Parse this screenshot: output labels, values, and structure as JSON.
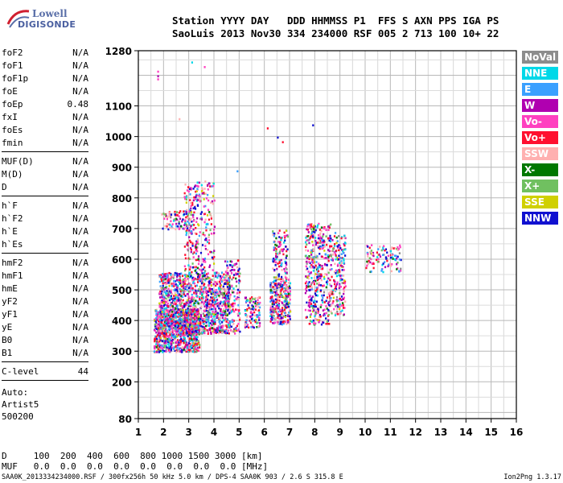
{
  "logo": {
    "line1": "Lowell",
    "line2": "DIGISONDE"
  },
  "header": {
    "line1": "Station YYYY DAY   DDD HHMMSS P1  FFS S AXN PPS IGA PS",
    "line2": "SaoLuis 2013 Nov30 334 234000 RSF 005 2 713 100 10+ 22"
  },
  "params_group1": [
    {
      "name": "foF2",
      "value": "N/A"
    },
    {
      "name": "foF1",
      "value": "N/A"
    },
    {
      "name": "foF1p",
      "value": "N/A"
    },
    {
      "name": "foE",
      "value": "N/A"
    },
    {
      "name": "foEp",
      "value": "0.48"
    },
    {
      "name": "fxI",
      "value": "N/A"
    },
    {
      "name": "foEs",
      "value": "N/A"
    },
    {
      "name": "fmin",
      "value": "N/A"
    }
  ],
  "params_group2": [
    {
      "name": "MUF(D)",
      "value": "N/A"
    },
    {
      "name": "M(D)",
      "value": "N/A"
    },
    {
      "name": "D",
      "value": "N/A"
    }
  ],
  "params_group3": [
    {
      "name": "h`F",
      "value": "N/A"
    },
    {
      "name": "h`F2",
      "value": "N/A"
    },
    {
      "name": "h`E",
      "value": "N/A"
    },
    {
      "name": "h`Es",
      "value": "N/A"
    }
  ],
  "params_group4": [
    {
      "name": "hmF2",
      "value": "N/A"
    },
    {
      "name": "hmF1",
      "value": "N/A"
    },
    {
      "name": "hmE",
      "value": "N/A"
    },
    {
      "name": "yF2",
      "value": "N/A"
    },
    {
      "name": "yF1",
      "value": "N/A"
    },
    {
      "name": "yE",
      "value": "N/A"
    },
    {
      "name": "B0",
      "value": "N/A"
    },
    {
      "name": "B1",
      "value": "N/A"
    }
  ],
  "params_group5": [
    {
      "name": "C-level",
      "value": "44"
    }
  ],
  "auto": {
    "line1": "Auto:",
    "line2": "Artist5",
    "line3": "500200"
  },
  "legend": [
    {
      "label": "NoVal",
      "color": "#8c8c8c"
    },
    {
      "label": "NNE",
      "color": "#00d8e8"
    },
    {
      "label": "E",
      "color": "#3aa0ff"
    },
    {
      "label": "W",
      "color": "#b000b0"
    },
    {
      "label": "Vo-",
      "color": "#ff40c0"
    },
    {
      "label": "Vo+",
      "color": "#ff1030"
    },
    {
      "label": "SSW",
      "color": "#ffb0b0"
    },
    {
      "label": "X-",
      "color": "#007800"
    },
    {
      "label": "X+",
      "color": "#70c060"
    },
    {
      "label": "SSE",
      "color": "#d0d000"
    },
    {
      "label": "NNW",
      "color": "#1010d0"
    }
  ],
  "bottom": {
    "line1": "D     100  200  400  600  800 1000 1500 3000 [km]",
    "line2": "MUF   0.0  0.0  0.0  0.0  0.0  0.0  0.0  0.0 [MHz]"
  },
  "footer": {
    "left": "SAA0K_2013334234000.RSF / 300fx256h 50 kHz 5.0 km / DPS-4 SAA0K 903 / 2.6 S 315.8 E",
    "right": "Ion2Png 1.3.17"
  },
  "chart_data": {
    "type": "scatter",
    "title": "",
    "xlabel": "",
    "ylabel": "",
    "xlim": [
      1,
      16
    ],
    "ylim": [
      80,
      1280
    ],
    "x_ticks": [
      1,
      2,
      3,
      4,
      5,
      6,
      7,
      8,
      9,
      10,
      11,
      12,
      13,
      14,
      15,
      16
    ],
    "y_ticks": [
      80,
      200,
      300,
      400,
      500,
      600,
      700,
      800,
      900,
      1000,
      1100,
      1280
    ],
    "grid": true,
    "clusters": [
      {
        "x_range": [
          1.6,
          3.4
        ],
        "y_range": [
          300,
          440
        ],
        "density": 900
      },
      {
        "x_range": [
          1.8,
          4.6
        ],
        "y_range": [
          360,
          560
        ],
        "density": 1300
      },
      {
        "x_range": [
          2.8,
          4.0
        ],
        "y_range": [
          560,
          860
        ],
        "density": 260
      },
      {
        "x_range": [
          1.9,
          3.2
        ],
        "y_range": [
          700,
          760
        ],
        "density": 90
      },
      {
        "x_range": [
          4.4,
          5.0
        ],
        "y_range": [
          360,
          600
        ],
        "density": 160
      },
      {
        "x_range": [
          5.2,
          5.8
        ],
        "y_range": [
          380,
          480
        ],
        "density": 110
      },
      {
        "x_range": [
          6.2,
          7.0
        ],
        "y_range": [
          390,
          540
        ],
        "density": 300
      },
      {
        "x_range": [
          6.3,
          6.9
        ],
        "y_range": [
          540,
          700
        ],
        "density": 110
      },
      {
        "x_range": [
          7.6,
          8.6
        ],
        "y_range": [
          390,
          720
        ],
        "density": 420
      },
      {
        "x_range": [
          8.6,
          9.2
        ],
        "y_range": [
          420,
          690
        ],
        "density": 180
      },
      {
        "x_range": [
          10.0,
          11.4
        ],
        "y_range": [
          560,
          650
        ],
        "density": 110
      }
    ],
    "outliers": [
      {
        "x": 1.75,
        "y": 1200
      },
      {
        "x": 1.75,
        "y": 1215
      },
      {
        "x": 1.75,
        "y": 1190
      },
      {
        "x": 3.6,
        "y": 1230
      },
      {
        "x": 6.1,
        "y": 1030
      },
      {
        "x": 6.5,
        "y": 1000
      },
      {
        "x": 6.7,
        "y": 985
      },
      {
        "x": 7.9,
        "y": 1040
      },
      {
        "x": 2.6,
        "y": 1060
      },
      {
        "x": 4.9,
        "y": 890
      },
      {
        "x": 3.1,
        "y": 1245
      }
    ]
  }
}
